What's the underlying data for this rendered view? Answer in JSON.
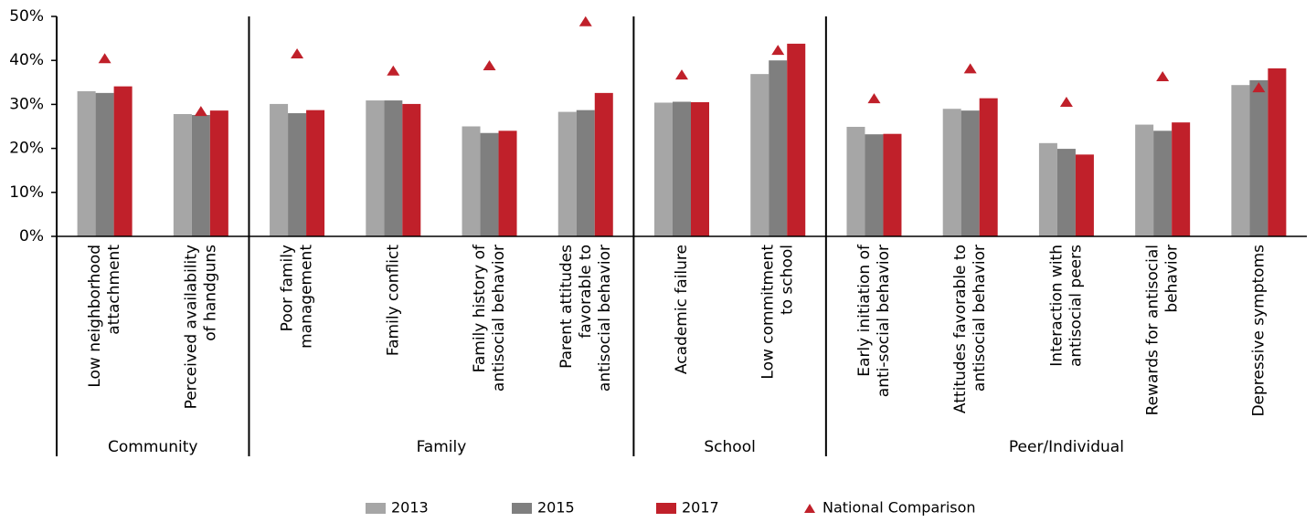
{
  "chart_data": {
    "type": "bar",
    "categories": [
      "Low neighborhood\nattachment",
      "Perceived availability\nof handguns",
      "Poor family\nmanagement",
      "Family conflict",
      "Family history of\nantisocial behavior",
      "Parent attitudes\nfavorable to\nantisocial behavior",
      "Academic failure",
      "Low commitment\nto school",
      "Early initiation of\nanti-social behavior",
      "Attitudes favorable to\nantisocial behavior",
      "Interaction with\nantisocial peers",
      "Rewards for antisocial\nbehavior",
      "Depressive symptoms"
    ],
    "groups": [
      {
        "label": "Community",
        "count": 2
      },
      {
        "label": "Family",
        "count": 4
      },
      {
        "label": "School",
        "count": 2
      },
      {
        "label": "Peer/Individual",
        "count": 5
      }
    ],
    "series": [
      {
        "name": "2013",
        "color": "#a6a6a6",
        "values": [
          33.0,
          27.8,
          30.1,
          30.9,
          25.0,
          28.3,
          30.4,
          36.9,
          24.9,
          29.0,
          21.2,
          25.4,
          34.4
        ]
      },
      {
        "name": "2015",
        "color": "#7f7f7f",
        "values": [
          32.6,
          27.6,
          28.0,
          30.9,
          23.5,
          28.7,
          30.6,
          40.0,
          23.2,
          28.6,
          19.9,
          24.0,
          35.5
        ]
      },
      {
        "name": "2017",
        "color": "#c0202a",
        "values": [
          34.1,
          28.6,
          28.7,
          30.1,
          24.0,
          32.6,
          30.5,
          43.8,
          23.3,
          31.4,
          18.6,
          25.9,
          38.2
        ]
      },
      {
        "name": "National Comparison",
        "color": "#c0202a",
        "marker": "triangle",
        "values": [
          40.4,
          28.4,
          41.5,
          37.6,
          38.8,
          48.8,
          36.7,
          42.3,
          31.3,
          38.1,
          30.5,
          36.3,
          33.8
        ]
      }
    ],
    "ylim": [
      0,
      50
    ],
    "yticks": [
      {
        "value": 0,
        "label": "0%"
      },
      {
        "value": 10,
        "label": "10%"
      },
      {
        "value": 20,
        "label": "20%"
      },
      {
        "value": 30,
        "label": "30%"
      },
      {
        "value": 40,
        "label": "40%"
      },
      {
        "value": 50,
        "label": "50%"
      }
    ],
    "grid": false
  }
}
